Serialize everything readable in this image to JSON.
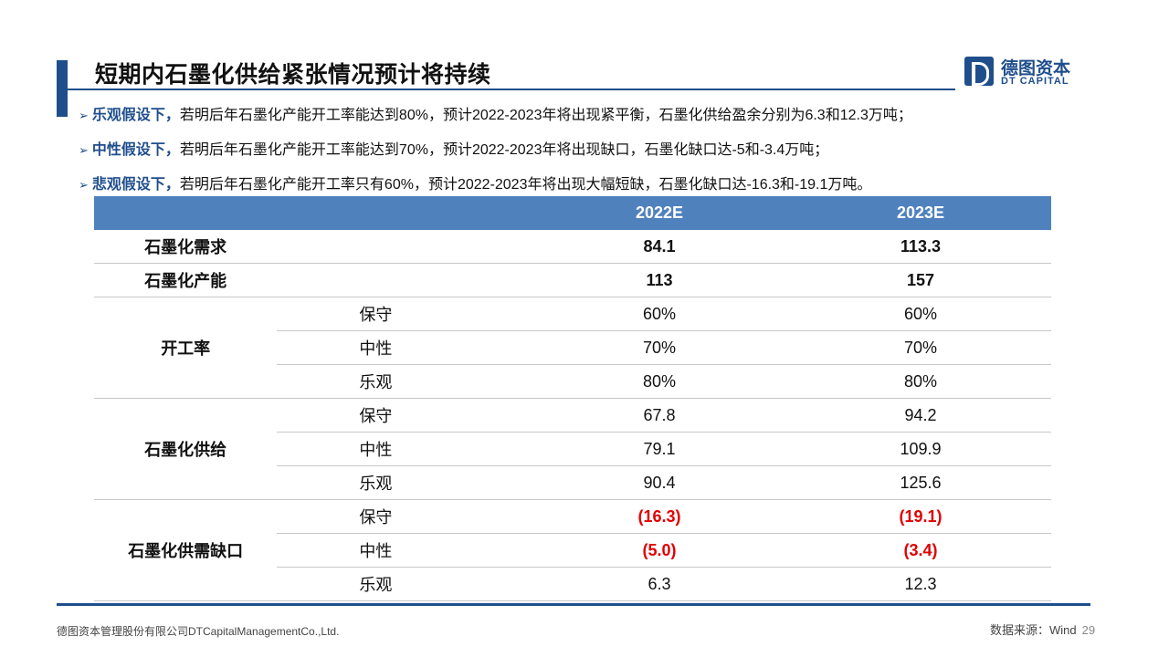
{
  "header": {
    "title": "短期内石墨化供给紧张情况预计将持续",
    "logo_cn": "德图资本",
    "logo_en": "DT CAPITAL"
  },
  "bullets": [
    {
      "lead": "乐观假设下，",
      "text": "若明后年石墨化产能开工率能达到80%，预计2022-2023年将出现紧平衡，石墨化供给盈余分别为6.3和12.3万吨；"
    },
    {
      "lead": "中性假设下，",
      "text": "若明后年石墨化产能开工率能达到70%，预计2022-2023年将出现缺口，石墨化缺口达-5和-3.4万吨；"
    },
    {
      "lead": "悲观假设下，",
      "text": "若明后年石墨化产能开工率只有60%，预计2022-2023年将出现大幅短缺，石墨化缺口达-16.3和-19.1万吨。"
    }
  ],
  "table": {
    "headers": [
      "",
      "",
      "2022E",
      "2023E"
    ],
    "rows": {
      "demand": {
        "label": "石墨化需求",
        "v2022": "84.1",
        "v2023": "113.3"
      },
      "capacity": {
        "label": "石墨化产能",
        "v2022": "113",
        "v2023": "157"
      },
      "utilization": {
        "label": "开工率",
        "rows": [
          {
            "scenario": "保守",
            "v2022": "60%",
            "v2023": "60%"
          },
          {
            "scenario": "中性",
            "v2022": "70%",
            "v2023": "70%"
          },
          {
            "scenario": "乐观",
            "v2022": "80%",
            "v2023": "80%"
          }
        ]
      },
      "supply": {
        "label": "石墨化供给",
        "rows": [
          {
            "scenario": "保守",
            "v2022": "67.8",
            "v2023": "94.2"
          },
          {
            "scenario": "中性",
            "v2022": "79.1",
            "v2023": "109.9"
          },
          {
            "scenario": "乐观",
            "v2022": "90.4",
            "v2023": "125.6"
          }
        ]
      },
      "gap": {
        "label": "石墨化供需缺口",
        "rows": [
          {
            "scenario": "保守",
            "v2022": "(16.3)",
            "v2023": "(19.1)"
          },
          {
            "scenario": "中性",
            "v2022": "(5.0)",
            "v2023": "(3.4)"
          },
          {
            "scenario": "乐观",
            "v2022": "6.3",
            "v2023": "12.3"
          }
        ]
      }
    }
  },
  "footer": {
    "company": "德图资本管理股份有限公司DTCapitalManagementCo.,Ltd.",
    "source": "数据来源：Wind",
    "page": "29"
  },
  "colors": {
    "primary": "#1f4e8c",
    "table_header": "#4f81bd",
    "negative": "#e00000"
  }
}
